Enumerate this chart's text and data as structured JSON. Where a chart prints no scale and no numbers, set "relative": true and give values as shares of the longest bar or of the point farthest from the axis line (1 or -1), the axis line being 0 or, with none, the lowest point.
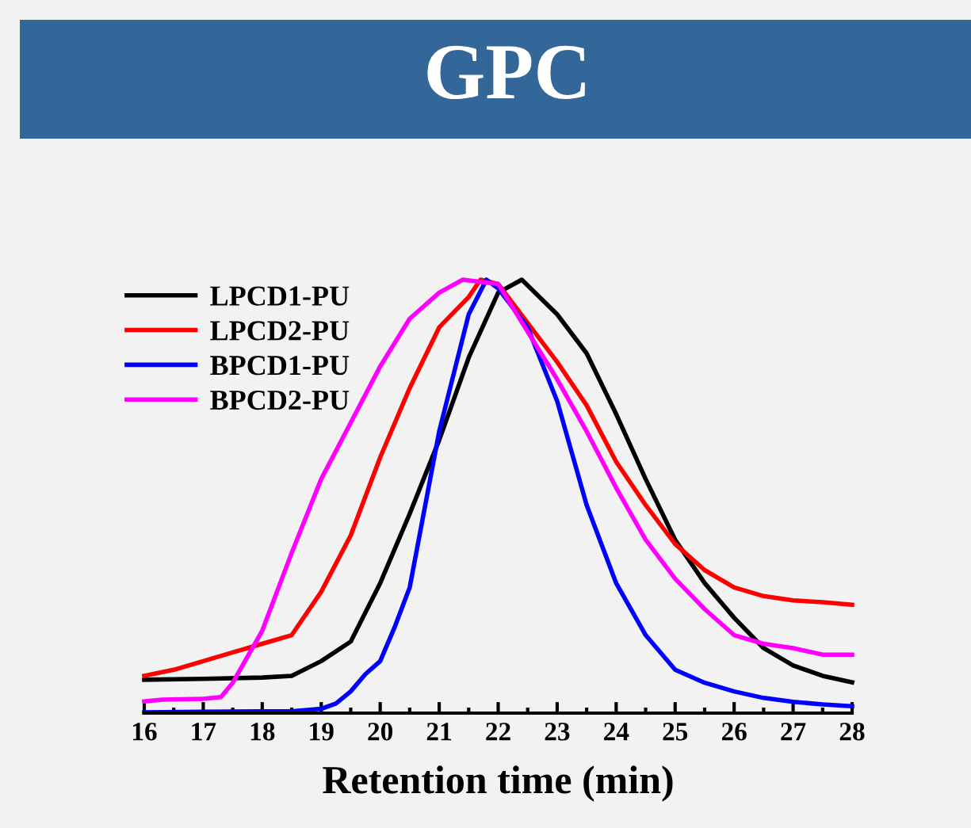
{
  "chart_data": {
    "type": "line",
    "title": "GPC",
    "xlabel": "Retention time (min)",
    "relative": true,
    "xlim": [
      16,
      28
    ],
    "xticks": [
      16,
      17,
      18,
      19,
      20,
      21,
      22,
      23,
      24,
      25,
      26,
      27,
      28
    ],
    "tick_labels": "x",
    "grid": false,
    "legend": "top left",
    "marker": "none",
    "line_style": "solid",
    "series": [
      {
        "name": "LPCD1-PU",
        "color": "#000000",
        "x": [
          16,
          17,
          18,
          18.5,
          19,
          19.5,
          20,
          20.5,
          21,
          21.5,
          22,
          22.4,
          23,
          23.5,
          24,
          24.5,
          25,
          25.5,
          26,
          26.5,
          27,
          27.5,
          28
        ],
        "values": [
          0.077,
          0.079,
          0.082,
          0.086,
          0.12,
          0.165,
          0.3,
          0.46,
          0.63,
          0.82,
          0.97,
          1.0,
          0.92,
          0.83,
          0.69,
          0.54,
          0.4,
          0.3,
          0.22,
          0.15,
          0.11,
          0.086,
          0.071
        ]
      },
      {
        "name": "LPCD2-PU",
        "color": "#ff0000",
        "x": [
          16,
          16.5,
          17,
          17.5,
          18,
          18.5,
          19,
          19.5,
          20,
          20.5,
          21,
          21.5,
          21.7,
          22,
          22.5,
          23,
          23.5,
          24,
          24.5,
          25,
          25.5,
          26,
          26.5,
          27,
          27.5,
          28
        ],
        "values": [
          0.086,
          0.1,
          0.12,
          0.14,
          0.16,
          0.18,
          0.28,
          0.41,
          0.59,
          0.75,
          0.89,
          0.96,
          1.0,
          0.99,
          0.9,
          0.81,
          0.71,
          0.58,
          0.48,
          0.39,
          0.33,
          0.29,
          0.27,
          0.26,
          0.256,
          0.25
        ]
      },
      {
        "name": "BPCD1-PU",
        "color": "#0000ff",
        "x": [
          16,
          17,
          18,
          18.5,
          19,
          19.25,
          19.5,
          19.75,
          20,
          20.25,
          20.5,
          21,
          21.5,
          21.8,
          22,
          22.5,
          23,
          23.5,
          24,
          24.5,
          25,
          25.5,
          26,
          26.5,
          27,
          27.5,
          28
        ],
        "values": [
          0.002,
          0.003,
          0.004,
          0.004,
          0.01,
          0.022,
          0.05,
          0.09,
          0.12,
          0.2,
          0.29,
          0.65,
          0.92,
          1.0,
          0.98,
          0.89,
          0.72,
          0.48,
          0.3,
          0.18,
          0.1,
          0.07,
          0.05,
          0.035,
          0.026,
          0.02,
          0.016
        ]
      },
      {
        "name": "BPCD2-PU",
        "color": "#ff00ff",
        "x": [
          16,
          16.3,
          17,
          17.3,
          17.5,
          17.75,
          18,
          18.5,
          19,
          19.5,
          20,
          20.5,
          21,
          21.4,
          22,
          22.5,
          23,
          23.5,
          24,
          24.5,
          25,
          25.5,
          26,
          26.5,
          27,
          27.5,
          28
        ],
        "values": [
          0.027,
          0.031,
          0.033,
          0.037,
          0.07,
          0.13,
          0.19,
          0.37,
          0.54,
          0.67,
          0.8,
          0.91,
          0.97,
          1.0,
          0.99,
          0.88,
          0.77,
          0.65,
          0.52,
          0.4,
          0.31,
          0.24,
          0.18,
          0.16,
          0.15,
          0.135,
          0.135
        ]
      }
    ]
  }
}
